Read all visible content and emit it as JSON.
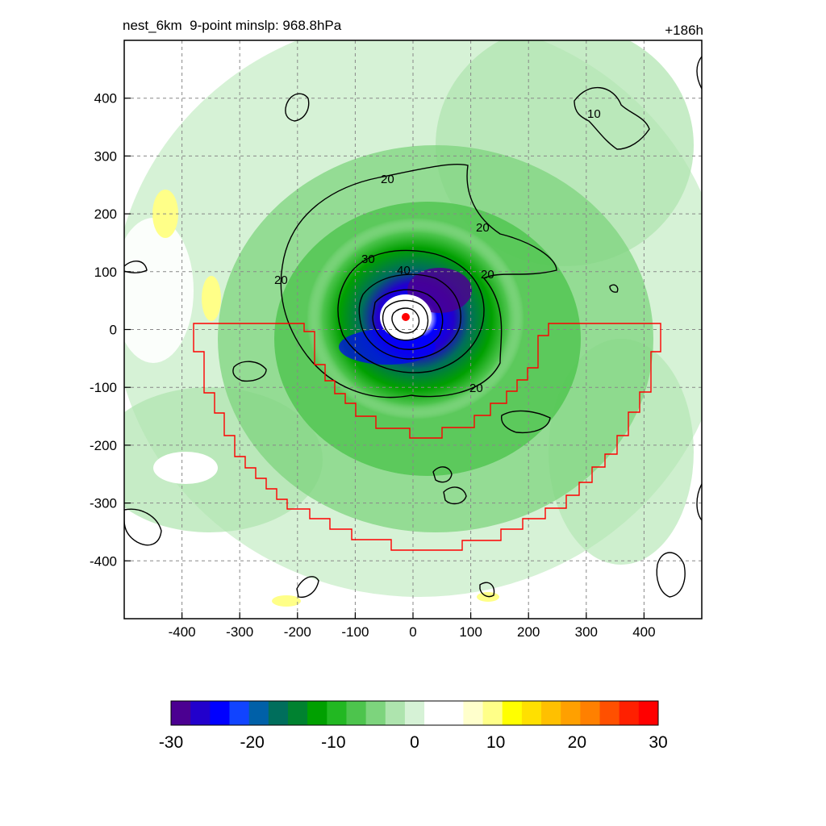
{
  "title_left": "nest_6km  9-point minslp: 968.8hPa",
  "title_right": "+186h",
  "chart_data": {
    "type": "heatmap",
    "description_fields": {
      "x_range": [
        -500,
        500
      ],
      "y_range": [
        -500,
        500
      ],
      "x_ticks": [
        -400,
        -300,
        -200,
        -100,
        0,
        100,
        200,
        300,
        400
      ],
      "y_ticks": [
        400,
        300,
        200,
        100,
        0,
        -100,
        -200,
        -300,
        -400
      ],
      "x_tick_labels": [
        "-400",
        "-300",
        "-200",
        "-100",
        "0",
        "100",
        "200",
        "300",
        "400"
      ],
      "y_tick_labels": [
        "400",
        "300",
        "200",
        "100",
        "0",
        "-100",
        "-200",
        "-300",
        "-400"
      ],
      "grid": true
    },
    "fill_field": {
      "min": -30,
      "max": 30,
      "colorbar_ticks": [
        -30,
        -20,
        -10,
        0,
        10,
        20,
        30
      ],
      "colorbar_labels": [
        "-30",
        "-20",
        "-10",
        "0",
        "10",
        "20",
        "30"
      ],
      "colors": [
        "#4b0091",
        "#2200cc",
        "#0000ff",
        "#1144ff",
        "#0060a8",
        "#006e5c",
        "#008230",
        "#00a000",
        "#22b822",
        "#4dc44d",
        "#7dd47d",
        "#aee4ae",
        "#d6f2d6",
        "#ffffff",
        "#ffffff",
        "#ffffcc",
        "#ffff88",
        "#ffff00",
        "#ffe000",
        "#ffc000",
        "#ffa000",
        "#ff8000",
        "#ff5000",
        "#ff2000",
        "#ff0000"
      ]
    },
    "contour_labels": [
      "20",
      "20",
      "20",
      "20",
      "30",
      "40",
      "10",
      "20"
    ],
    "center_marker": {
      "x": -10,
      "y": 25,
      "color": "#ff0000"
    },
    "boundary_color": "#ff0000"
  }
}
